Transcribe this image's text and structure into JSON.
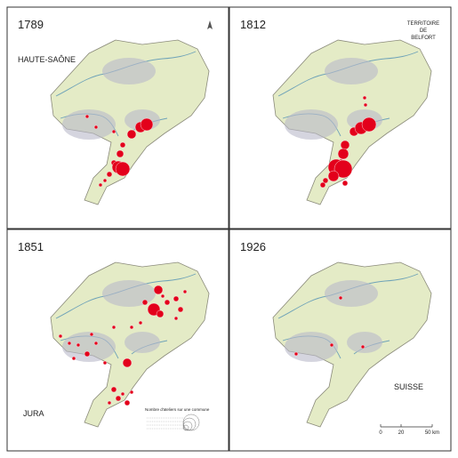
{
  "panels": [
    {
      "year": "1789",
      "region_label": "HAUTE-SAÔNE"
    },
    {
      "year": "1812",
      "region_label_lines": [
        "TERRITOIRE",
        "DE",
        "BELFORT"
      ]
    },
    {
      "year": "1851",
      "region_label": "JURA",
      "legend_title": "Nombre d'ateliers sur une commune"
    },
    {
      "year": "1926",
      "region_label": "SUISSE",
      "scale_labels": [
        "0",
        "20",
        "50 km"
      ]
    }
  ]
}
